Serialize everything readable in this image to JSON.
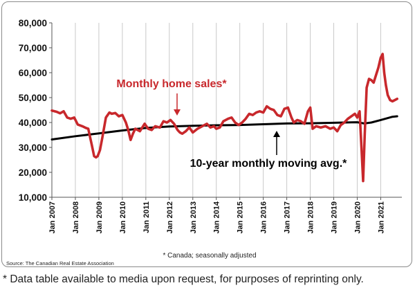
{
  "chart_data": {
    "type": "line",
    "ylim": [
      10000,
      80000
    ],
    "y_ticks": [
      10000,
      20000,
      30000,
      40000,
      50000,
      60000,
      70000,
      80000
    ],
    "y_tick_labels": [
      "10,000",
      "20,000",
      "30,000",
      "40,000",
      "50,000",
      "60,000",
      "70,000",
      "80,000"
    ],
    "x_range": [
      2007.0,
      2021.9
    ],
    "x_tick_labels": [
      "Jan 2007",
      "Jan 2008",
      "Jan 2009",
      "Jan 2010",
      "Jan 2011",
      "Jan 2012",
      "Jan 2013",
      "Jan 2014",
      "Jan 2015",
      "Jan 2016",
      "Jan 2017",
      "Jan 2018",
      "Jan 2019",
      "Jan 2020",
      "Jan 2021"
    ],
    "grid": "vertical",
    "colors": {
      "sales": "#c8282c",
      "average": "#000000",
      "grid": "#c9c9c9"
    },
    "annotations": {
      "sales": "Monthly home sales*",
      "average": "10-year monthly moving avg.*",
      "region_note": "* Canada; seasonally adjusted",
      "source": "Source: The Canadian Real Estate Association"
    },
    "series": [
      {
        "name": "Monthly home sales*",
        "x": [
          2007.0,
          2007.2,
          2007.35,
          2007.5,
          2007.65,
          2007.8,
          2007.95,
          2008.1,
          2008.3,
          2008.45,
          2008.55,
          2008.7,
          2008.8,
          2008.88,
          2008.95,
          2009.05,
          2009.15,
          2009.3,
          2009.45,
          2009.55,
          2009.7,
          2009.85,
          2010.0,
          2010.15,
          2010.25,
          2010.35,
          2010.45,
          2010.55,
          2010.75,
          2010.95,
          2011.1,
          2011.25,
          2011.4,
          2011.6,
          2011.75,
          2011.9,
          2012.05,
          2012.2,
          2012.35,
          2012.45,
          2012.55,
          2012.7,
          2012.85,
          2013.0,
          2013.2,
          2013.4,
          2013.6,
          2013.75,
          2013.9,
          2014.0,
          2014.15,
          2014.3,
          2014.5,
          2014.65,
          2014.8,
          2014.95,
          2015.1,
          2015.25,
          2015.4,
          2015.55,
          2015.7,
          2015.85,
          2016.0,
          2016.15,
          2016.3,
          2016.45,
          2016.6,
          2016.75,
          2016.9,
          2017.05,
          2017.2,
          2017.3,
          2017.45,
          2017.6,
          2017.75,
          2017.9,
          2018.0,
          2018.1,
          2018.25,
          2018.45,
          2018.65,
          2018.85,
          2019.0,
          2019.15,
          2019.3,
          2019.45,
          2019.6,
          2019.75,
          2019.9,
          2020.0,
          2020.1,
          2020.18,
          2020.25,
          2020.32,
          2020.4,
          2020.5,
          2020.6,
          2020.7,
          2020.8,
          2020.9,
          2021.0,
          2021.08,
          2021.15,
          2021.22,
          2021.3,
          2021.4,
          2021.5,
          2021.6,
          2021.7
        ],
        "values": [
          44800,
          44300,
          43700,
          44500,
          42000,
          41500,
          42000,
          39200,
          38500,
          37800,
          37500,
          31000,
          26500,
          26000,
          26500,
          29000,
          34000,
          42000,
          44000,
          43500,
          43800,
          42500,
          43000,
          40000,
          37000,
          33000,
          35500,
          37500,
          36500,
          39500,
          37500,
          37000,
          38500,
          38000,
          40500,
          40000,
          41000,
          39500,
          37000,
          36000,
          35500,
          36500,
          38000,
          36000,
          37500,
          38500,
          39500,
          38000,
          38500,
          37500,
          38000,
          40500,
          41500,
          42000,
          40000,
          39000,
          40000,
          41500,
          43500,
          43000,
          44000,
          44500,
          44000,
          46500,
          45500,
          45000,
          43000,
          42500,
          45500,
          46000,
          42000,
          40000,
          41000,
          40500,
          39500,
          44500,
          46000,
          37500,
          38500,
          38000,
          38500,
          37500,
          38000,
          36500,
          39000,
          40000,
          41500,
          42500,
          43500,
          42000,
          44500,
          30000,
          16500,
          35000,
          54000,
          57500,
          57000,
          56000,
          59000,
          62000,
          66000,
          67500,
          60000,
          55000,
          51000,
          49000,
          48500,
          49000,
          49500
        ]
      },
      {
        "name": "10-year monthly moving avg.*",
        "x": [
          2007.0,
          2008.0,
          2009.0,
          2010.0,
          2011.0,
          2012.0,
          2013.0,
          2014.0,
          2015.0,
          2016.0,
          2017.0,
          2018.0,
          2019.0,
          2020.0,
          2020.3,
          2020.6,
          2021.0,
          2021.5,
          2021.7
        ],
        "values": [
          33200,
          34500,
          35600,
          36800,
          37800,
          38400,
          38700,
          38900,
          39000,
          39300,
          39600,
          39700,
          39900,
          40100,
          39600,
          40000,
          41000,
          42300,
          42500
        ]
      }
    ]
  },
  "footnote": "* Data table available to media upon request, for purposes of reprinting only."
}
